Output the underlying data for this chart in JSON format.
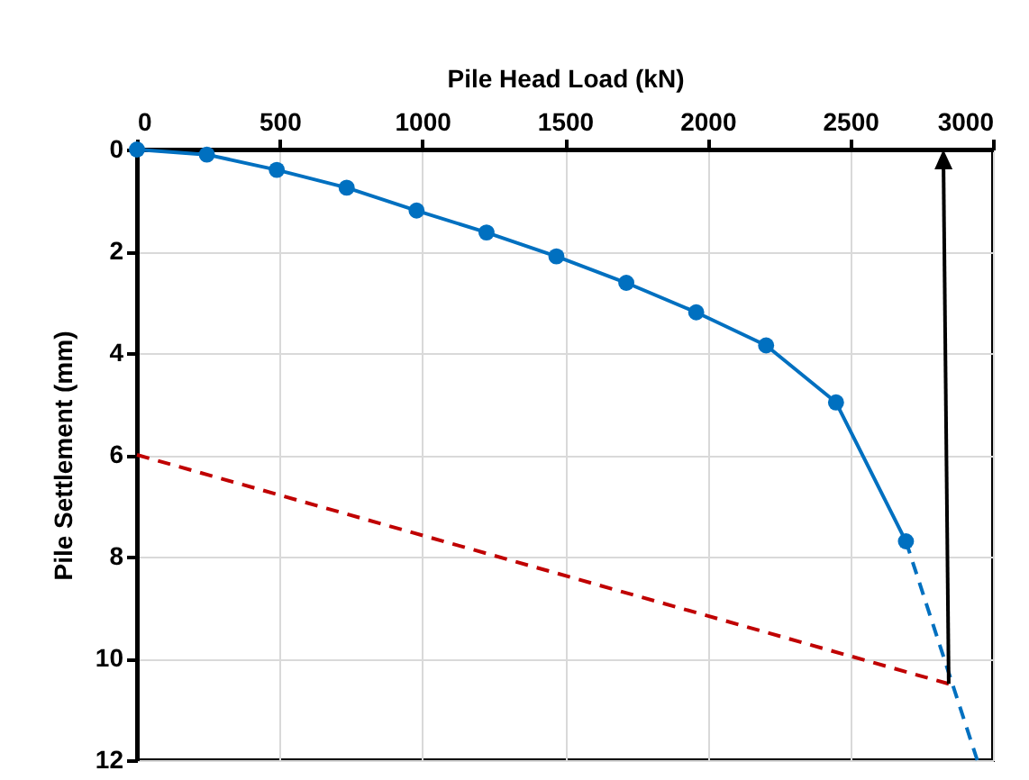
{
  "chart_data": {
    "type": "line",
    "xlabel": "Pile Head Load (kN)",
    "ylabel": "Pile Settlement (mm)",
    "xlim": [
      0,
      3000
    ],
    "xticks": [
      0,
      500,
      1000,
      1500,
      2000,
      2500,
      3000
    ],
    "ylim": [
      12,
      0
    ],
    "yticks": [
      0,
      2,
      4,
      6,
      8,
      10,
      12
    ],
    "grid": true,
    "series": [
      {
        "color": "#0070c0",
        "marker": "circle",
        "line_style": "solid",
        "x": [
          0,
          245,
          490,
          735,
          980,
          1225,
          1470,
          1715,
          1960,
          2205,
          2450,
          2695
        ],
        "values": [
          0,
          0.1,
          0.4,
          0.75,
          1.2,
          1.63,
          2.1,
          2.62,
          3.2,
          3.85,
          4.97,
          7.7
        ]
      },
      {
        "color": "#0070c0",
        "marker": "none",
        "line_style": "dashed",
        "x": [
          2695,
          2945
        ],
        "values": [
          7.7,
          12
        ]
      },
      {
        "color": "#c00000",
        "marker": "none",
        "line_style": "dashed",
        "x": [
          0,
          2845
        ],
        "values": [
          6,
          10.5
        ]
      }
    ]
  }
}
